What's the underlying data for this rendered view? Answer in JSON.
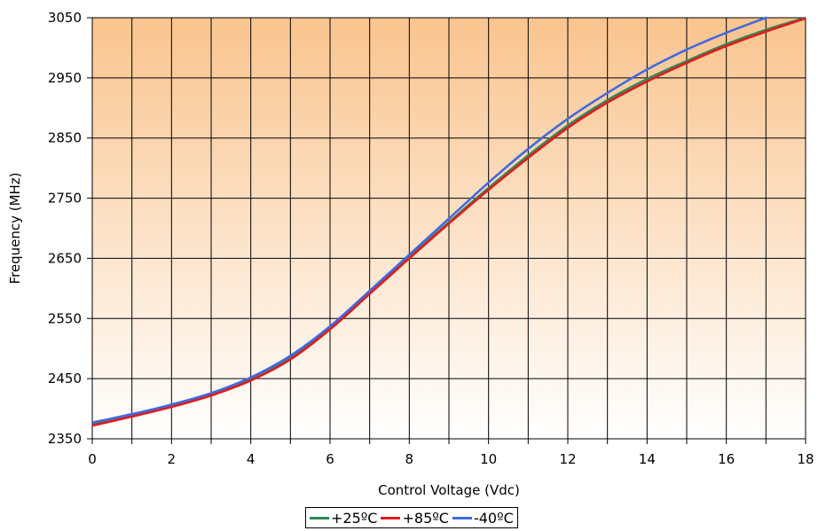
{
  "chart_data": {
    "type": "line",
    "title": "",
    "xlabel": "Control Voltage (Vdc)",
    "ylabel": "Frequency (MHz)",
    "xlim": [
      0,
      18
    ],
    "ylim": [
      2350,
      3050
    ],
    "x_ticks": [
      "0",
      "2",
      "4",
      "6",
      "8",
      "10",
      "12",
      "14",
      "16",
      "18"
    ],
    "y_ticks": [
      "2350",
      "2450",
      "2550",
      "2650",
      "2750",
      "2850",
      "2950",
      "3050"
    ],
    "grid": true,
    "legend_position": "bottom",
    "background": {
      "gradient_top": "#f9c48e",
      "gradient_bottom": "#ffffff"
    },
    "series": [
      {
        "name": "+25ºC",
        "color": "#2e8b57",
        "x": [
          0,
          1,
          2,
          3,
          4,
          5,
          6,
          7,
          8,
          9,
          10,
          11,
          12,
          13,
          14,
          15,
          16,
          17,
          18
        ],
        "y": [
          2375,
          2389,
          2405,
          2424,
          2449,
          2484,
          2534,
          2593,
          2652,
          2710,
          2767,
          2821,
          2871,
          2913,
          2948,
          2978,
          3006,
          3030,
          3050
        ]
      },
      {
        "name": "+85ºC",
        "color": "#e31a1c",
        "x": [
          0,
          1,
          2,
          3,
          4,
          5,
          6,
          7,
          8,
          9,
          10,
          11,
          12,
          13,
          14,
          15,
          16,
          17,
          18
        ],
        "y": [
          2372,
          2387,
          2403,
          2422,
          2447,
          2482,
          2532,
          2591,
          2650,
          2708,
          2764,
          2817,
          2867,
          2909,
          2944,
          2975,
          3003,
          3027,
          3049
        ]
      },
      {
        "name": "-40ºC",
        "color": "#4169e1",
        "x": [
          0,
          1,
          2,
          3,
          4,
          5,
          6,
          7,
          8,
          9,
          10,
          11,
          12,
          13,
          14,
          15,
          16,
          17
        ],
        "y": [
          2377,
          2391,
          2407,
          2426,
          2452,
          2488,
          2537,
          2596,
          2656,
          2716,
          2776,
          2832,
          2882,
          2925,
          2964,
          2997,
          3025,
          3050
        ]
      }
    ]
  }
}
